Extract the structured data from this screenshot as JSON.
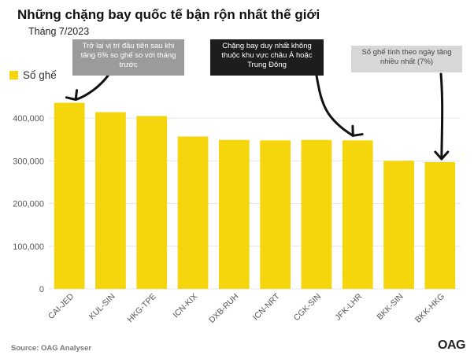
{
  "title": "Những chặng bay quốc tế bận rộn nhất thế giới",
  "subtitle": "Tháng 7/2023",
  "legend_label": "Số ghế",
  "source": "Source: OAG Analyser",
  "brand": "OAG",
  "colors": {
    "bar": "#f5d50c",
    "grid": "#e6e6e6",
    "axis_text": "#555555"
  },
  "annotations": [
    {
      "text": "Trở lại vị trí đầu tiên sau khi tăng 6% so ghế so với tháng trước"
    },
    {
      "text": "Chặng bay duy nhất không thuộc khu vực châu Á hoặc Trung Đông"
    },
    {
      "text": "Số ghế tính theo ngày tăng nhiều nhất (7%)"
    }
  ],
  "chart_data": {
    "type": "bar",
    "categories": [
      "CAI-JED",
      "KUL-SIN",
      "HKG-TPE",
      "ICN-KIX",
      "DXB-RUH",
      "ICN-NRT",
      "CGK-SIN",
      "JFK-LHR",
      "BKK-SIN",
      "BKK-HKG"
    ],
    "series": [
      {
        "name": "Số ghế",
        "values": [
          436000,
          414000,
          405000,
          357000,
          349000,
          348000,
          349000,
          348000,
          300000,
          297000
        ]
      }
    ],
    "ylim": [
      0,
      450000
    ],
    "yticks": [
      0,
      100000,
      200000,
      300000,
      400000
    ],
    "ytick_labels": [
      "0",
      "100,000",
      "200,000",
      "300,000",
      "400,000"
    ],
    "grid": true,
    "legend": "top-left"
  }
}
